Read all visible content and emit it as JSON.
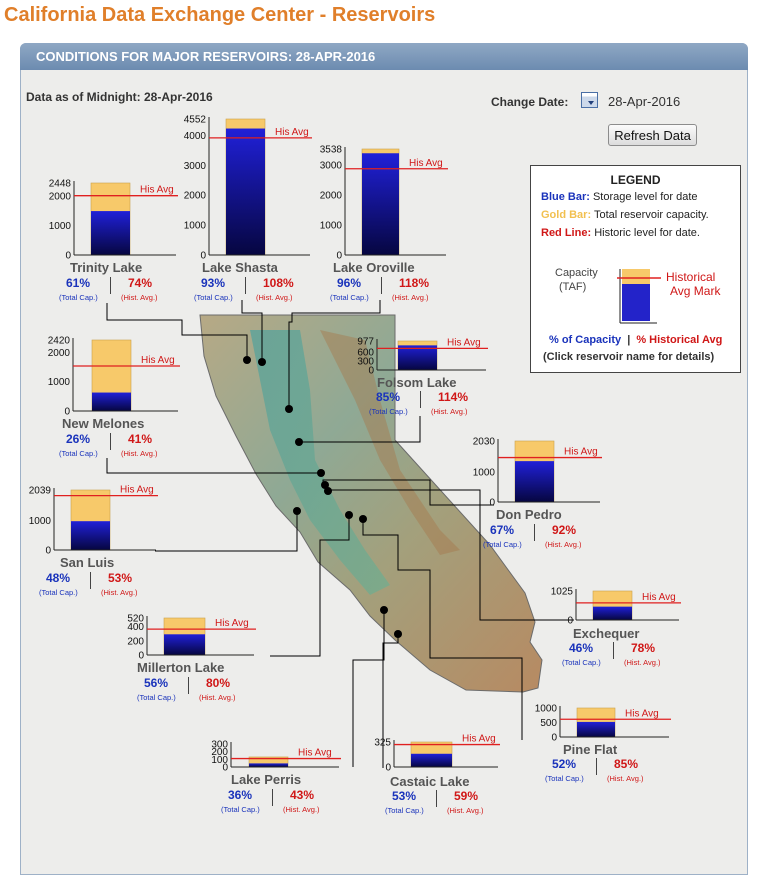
{
  "site_title": "California Data Exchange Center - Reservoirs",
  "panel_header": "CONDITIONS FOR MAJOR RESERVOIRS: 28-APR-2016",
  "data_as_of": "Data as of Midnight: 28-Apr-2016",
  "change_date_label": "Change Date:",
  "date_value": "28-Apr-2016",
  "refresh_label": "Refresh Data",
  "his_avg_label": "His Avg",
  "sub_total_label": "(Total Cap.)",
  "sub_hist_label": "(Hist. Avg.)",
  "colors": {
    "blue_bar": "#1010c0",
    "gold_bar": "#f7c96a",
    "red_line": "#e02020",
    "title": "#e07f2a"
  },
  "legend": {
    "title": "LEGEND",
    "blue_key": "Blue Bar:",
    "blue_desc": "Storage level for date",
    "gold_key": "Gold Bar:",
    "gold_desc": "Total reservoir capacity.",
    "red_key": "Red Line:",
    "red_desc": "Historic level for date.",
    "capacity_label": "Capacity",
    "taf_label": "(TAF)",
    "hist_mark_1": "Historical",
    "hist_mark_2": "Avg Mark",
    "pct_capacity": "% of Capacity",
    "separator": "|",
    "pct_hist": "% Historical Avg",
    "click_note": "(Click reservoir name for details)"
  },
  "chart_data": [
    {
      "type": "bar",
      "name": "Trinity Lake",
      "capacity": 2448,
      "storage": 1493,
      "hist_avg": 2017,
      "ticks": [
        "2448",
        "2000",
        "1000",
        "0"
      ],
      "pct_capacity": "61%",
      "pct_hist": "74%"
    },
    {
      "type": "bar",
      "name": "Lake Shasta",
      "capacity": 4552,
      "storage": 4233,
      "hist_avg": 3920,
      "ticks": [
        "4552",
        "4000",
        "3000",
        "2000",
        "1000",
        "0"
      ],
      "pct_capacity": "93%",
      "pct_hist": "108%"
    },
    {
      "type": "bar",
      "name": "Lake Oroville",
      "capacity": 3538,
      "storage": 3396,
      "hist_avg": 2878,
      "ticks": [
        "3538",
        "3000",
        "2000",
        "1000",
        "0"
      ],
      "pct_capacity": "96%",
      "pct_hist": "118%"
    },
    {
      "type": "bar",
      "name": "Folsom Lake",
      "capacity": 977,
      "storage": 830,
      "hist_avg": 728,
      "ticks": [
        "977",
        "600",
        "300",
        "0"
      ],
      "pct_capacity": "85%",
      "pct_hist": "114%"
    },
    {
      "type": "bar",
      "name": "New Melones",
      "capacity": 2420,
      "storage": 629,
      "hist_avg": 1534,
      "ticks": [
        "2420",
        "2000",
        "1000",
        "0"
      ],
      "pct_capacity": "26%",
      "pct_hist": "41%"
    },
    {
      "type": "bar",
      "name": "Don Pedro",
      "capacity": 2030,
      "storage": 1360,
      "hist_avg": 1478,
      "ticks": [
        "2030",
        "1000",
        "0"
      ],
      "pct_capacity": "67%",
      "pct_hist": "92%"
    },
    {
      "type": "bar",
      "name": "San Luis",
      "capacity": 2039,
      "storage": 979,
      "hist_avg": 1847,
      "ticks": [
        "2039",
        "1000",
        "0"
      ],
      "pct_capacity": "48%",
      "pct_hist": "53%"
    },
    {
      "type": "bar",
      "name": "Millerton Lake",
      "capacity": 520,
      "storage": 291,
      "hist_avg": 364,
      "ticks": [
        "520",
        "400",
        "200",
        "0"
      ],
      "pct_capacity": "56%",
      "pct_hist": "80%"
    },
    {
      "type": "bar",
      "name": "Exchequer",
      "capacity": 1025,
      "storage": 472,
      "hist_avg": 605,
      "ticks": [
        "1025",
        "0"
      ],
      "pct_capacity": "46%",
      "pct_hist": "78%"
    },
    {
      "type": "bar",
      "name": "Pine Flat",
      "capacity": 1000,
      "storage": 520,
      "hist_avg": 612,
      "ticks": [
        "1000",
        "500",
        "0"
      ],
      "pct_capacity": "52%",
      "pct_hist": "85%"
    },
    {
      "type": "bar",
      "name": "Lake Perris",
      "capacity": 131,
      "storage": 47,
      "hist_avg": 110,
      "ticks": [
        "300",
        "200",
        "100",
        "0"
      ],
      "pct_capacity": "36%",
      "pct_hist": "43%"
    },
    {
      "type": "bar",
      "name": "Castaic Lake",
      "capacity": 325,
      "storage": 172,
      "hist_avg": 292,
      "ticks": [
        "325",
        "0"
      ],
      "pct_capacity": "53%",
      "pct_hist": "59%"
    }
  ]
}
